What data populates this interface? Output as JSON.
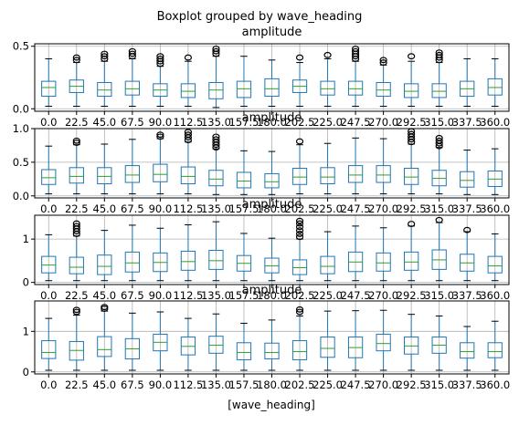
{
  "figure": {
    "suptitle": "Boxplot grouped by wave_heading",
    "xlabel": "[wave_heading]"
  },
  "colors": {
    "box": "#1f77b4",
    "median": "#2ca02c",
    "whisker": "#1f77b4",
    "flier": "#000000",
    "grid": "#b0b0b0",
    "axis": "#000000"
  },
  "chart_data": [
    {
      "type": "boxplot",
      "title": "amplitude",
      "categories": [
        "0.0",
        "22.5",
        "45.0",
        "67.5",
        "90.0",
        "112.5",
        "135.0",
        "157.5",
        "180.0",
        "202.5",
        "225.0",
        "247.5",
        "270.0",
        "292.5",
        "315.0",
        "337.5",
        "360.0"
      ],
      "yticks": [
        "0.0",
        "0.5"
      ],
      "ylim": [
        -0.02,
        0.52
      ],
      "grid": true,
      "boxes": [
        {
          "whislo": 0.02,
          "q1": 0.1,
          "med": 0.17,
          "q3": 0.22,
          "whishi": 0.4,
          "fliers": []
        },
        {
          "whislo": 0.02,
          "q1": 0.13,
          "med": 0.18,
          "q3": 0.23,
          "whishi": 0.37,
          "fliers": [
            0.39,
            0.41
          ]
        },
        {
          "whislo": 0.02,
          "q1": 0.1,
          "med": 0.15,
          "q3": 0.21,
          "whishi": 0.38,
          "fliers": [
            0.4,
            0.42,
            0.44
          ]
        },
        {
          "whislo": 0.02,
          "q1": 0.11,
          "med": 0.16,
          "q3": 0.22,
          "whishi": 0.4,
          "fliers": [
            0.42,
            0.44,
            0.46
          ]
        },
        {
          "whislo": 0.02,
          "q1": 0.1,
          "med": 0.15,
          "q3": 0.2,
          "whishi": 0.34,
          "fliers": [
            0.36,
            0.38,
            0.4,
            0.42
          ]
        },
        {
          "whislo": 0.02,
          "q1": 0.09,
          "med": 0.14,
          "q3": 0.2,
          "whishi": 0.38,
          "fliers": [
            0.41
          ]
        },
        {
          "whislo": 0.01,
          "q1": 0.08,
          "med": 0.15,
          "q3": 0.21,
          "whishi": 0.42,
          "fliers": [
            0.44,
            0.46,
            0.48
          ]
        },
        {
          "whislo": 0.02,
          "q1": 0.09,
          "med": 0.16,
          "q3": 0.22,
          "whishi": 0.42,
          "fliers": []
        },
        {
          "whislo": 0.02,
          "q1": 0.1,
          "med": 0.16,
          "q3": 0.24,
          "whishi": 0.39,
          "fliers": []
        },
        {
          "whislo": 0.02,
          "q1": 0.13,
          "med": 0.18,
          "q3": 0.23,
          "whishi": 0.37,
          "fliers": [
            0.41
          ]
        },
        {
          "whislo": 0.02,
          "q1": 0.11,
          "med": 0.16,
          "q3": 0.22,
          "whishi": 0.4,
          "fliers": [
            0.43
          ]
        },
        {
          "whislo": 0.02,
          "q1": 0.11,
          "med": 0.16,
          "q3": 0.22,
          "whishi": 0.38,
          "fliers": [
            0.4,
            0.42,
            0.44,
            0.46,
            0.48
          ]
        },
        {
          "whislo": 0.02,
          "q1": 0.1,
          "med": 0.15,
          "q3": 0.21,
          "whishi": 0.35,
          "fliers": [
            0.37,
            0.39
          ]
        },
        {
          "whislo": 0.02,
          "q1": 0.09,
          "med": 0.14,
          "q3": 0.2,
          "whishi": 0.38,
          "fliers": [
            0.42
          ]
        },
        {
          "whislo": 0.02,
          "q1": 0.09,
          "med": 0.14,
          "q3": 0.2,
          "whishi": 0.37,
          "fliers": [
            0.39,
            0.41,
            0.43,
            0.45
          ]
        },
        {
          "whislo": 0.02,
          "q1": 0.1,
          "med": 0.16,
          "q3": 0.22,
          "whishi": 0.4,
          "fliers": []
        },
        {
          "whislo": 0.02,
          "q1": 0.11,
          "med": 0.17,
          "q3": 0.24,
          "whishi": 0.4,
          "fliers": []
        }
      ]
    },
    {
      "type": "boxplot",
      "title": "amplitude",
      "categories": [
        "0.0",
        "22.5",
        "45.0",
        "67.5",
        "90.0",
        "112.5",
        "135.0",
        "157.5",
        "180.0",
        "202.5",
        "225.0",
        "247.5",
        "270.0",
        "292.5",
        "315.0",
        "337.5",
        "360.0"
      ],
      "yticks": [
        "0.0",
        "0.5",
        "1.0"
      ],
      "ylim": [
        -0.03,
        1.0
      ],
      "grid": true,
      "boxes": [
        {
          "whislo": 0.03,
          "q1": 0.17,
          "med": 0.27,
          "q3": 0.39,
          "whishi": 0.74,
          "fliers": []
        },
        {
          "whislo": 0.03,
          "q1": 0.19,
          "med": 0.29,
          "q3": 0.42,
          "whishi": 0.76,
          "fliers": [
            0.79,
            0.82
          ]
        },
        {
          "whislo": 0.03,
          "q1": 0.18,
          "med": 0.29,
          "q3": 0.42,
          "whishi": 0.77,
          "fliers": []
        },
        {
          "whislo": 0.03,
          "q1": 0.2,
          "med": 0.31,
          "q3": 0.45,
          "whishi": 0.84,
          "fliers": []
        },
        {
          "whislo": 0.03,
          "q1": 0.21,
          "med": 0.32,
          "q3": 0.47,
          "whishi": 0.85,
          "fliers": [
            0.88,
            0.91
          ]
        },
        {
          "whislo": 0.03,
          "q1": 0.18,
          "med": 0.29,
          "q3": 0.43,
          "whishi": 0.8,
          "fliers": [
            0.83,
            0.87,
            0.91,
            0.95
          ]
        },
        {
          "whislo": 0.02,
          "q1": 0.15,
          "med": 0.25,
          "q3": 0.38,
          "whishi": 0.7,
          "fliers": [
            0.72,
            0.76,
            0.8,
            0.84,
            0.88
          ]
        },
        {
          "whislo": 0.02,
          "q1": 0.12,
          "med": 0.22,
          "q3": 0.35,
          "whishi": 0.67,
          "fliers": []
        },
        {
          "whislo": 0.02,
          "q1": 0.12,
          "med": 0.21,
          "q3": 0.33,
          "whishi": 0.66,
          "fliers": []
        },
        {
          "whislo": 0.03,
          "q1": 0.17,
          "med": 0.28,
          "q3": 0.41,
          "whishi": 0.76,
          "fliers": [
            0.81
          ]
        },
        {
          "whislo": 0.03,
          "q1": 0.18,
          "med": 0.28,
          "q3": 0.42,
          "whishi": 0.78,
          "fliers": []
        },
        {
          "whislo": 0.03,
          "q1": 0.2,
          "med": 0.31,
          "q3": 0.45,
          "whishi": 0.86,
          "fliers": []
        },
        {
          "whislo": 0.03,
          "q1": 0.2,
          "med": 0.31,
          "q3": 0.45,
          "whishi": 0.85,
          "fliers": []
        },
        {
          "whislo": 0.03,
          "q1": 0.17,
          "med": 0.28,
          "q3": 0.41,
          "whishi": 0.77,
          "fliers": [
            0.8,
            0.84,
            0.88,
            0.92,
            0.96
          ]
        },
        {
          "whislo": 0.03,
          "q1": 0.15,
          "med": 0.26,
          "q3": 0.38,
          "whishi": 0.72,
          "fliers": [
            0.74,
            0.78,
            0.82,
            0.86
          ]
        },
        {
          "whislo": 0.02,
          "q1": 0.13,
          "med": 0.23,
          "q3": 0.36,
          "whishi": 0.68,
          "fliers": []
        },
        {
          "whislo": 0.02,
          "q1": 0.14,
          "med": 0.25,
          "q3": 0.37,
          "whishi": 0.7,
          "fliers": []
        }
      ]
    },
    {
      "type": "boxplot",
      "title": "amplitude",
      "categories": [
        "0.0",
        "22.5",
        "45.0",
        "67.5",
        "90.0",
        "112.5",
        "135.0",
        "157.5",
        "180.0",
        "202.5",
        "225.0",
        "247.5",
        "270.0",
        "292.5",
        "315.0",
        "337.5",
        "360.0"
      ],
      "yticks": [
        "0",
        "1"
      ],
      "ylim": [
        -0.05,
        1.55
      ],
      "grid": true,
      "boxes": [
        {
          "whislo": 0.04,
          "q1": 0.22,
          "med": 0.4,
          "q3": 0.6,
          "whishi": 1.1,
          "fliers": []
        },
        {
          "whislo": 0.04,
          "q1": 0.2,
          "med": 0.35,
          "q3": 0.58,
          "whishi": 1.07,
          "fliers": [
            1.12,
            1.18,
            1.24,
            1.3,
            1.36
          ]
        },
        {
          "whislo": 0.04,
          "q1": 0.18,
          "med": 0.37,
          "q3": 0.63,
          "whishi": 1.2,
          "fliers": []
        },
        {
          "whislo": 0.04,
          "q1": 0.24,
          "med": 0.45,
          "q3": 0.7,
          "whishi": 1.32,
          "fliers": []
        },
        {
          "whislo": 0.04,
          "q1": 0.25,
          "med": 0.46,
          "q3": 0.68,
          "whishi": 1.25,
          "fliers": []
        },
        {
          "whislo": 0.04,
          "q1": 0.28,
          "med": 0.48,
          "q3": 0.72,
          "whishi": 1.33,
          "fliers": []
        },
        {
          "whislo": 0.04,
          "q1": 0.3,
          "med": 0.5,
          "q3": 0.74,
          "whishi": 1.4,
          "fliers": []
        },
        {
          "whislo": 0.04,
          "q1": 0.26,
          "med": 0.44,
          "q3": 0.62,
          "whishi": 1.13,
          "fliers": []
        },
        {
          "whislo": 0.04,
          "q1": 0.22,
          "med": 0.38,
          "q3": 0.56,
          "whishi": 1.02,
          "fliers": []
        },
        {
          "whislo": 0.04,
          "q1": 0.18,
          "med": 0.34,
          "q3": 0.52,
          "whishi": 1.0,
          "fliers": [
            1.05,
            1.12,
            1.2,
            1.28,
            1.36,
            1.42
          ]
        },
        {
          "whislo": 0.04,
          "q1": 0.2,
          "med": 0.37,
          "q3": 0.6,
          "whishi": 1.17,
          "fliers": []
        },
        {
          "whislo": 0.04,
          "q1": 0.25,
          "med": 0.47,
          "q3": 0.7,
          "whishi": 1.3,
          "fliers": []
        },
        {
          "whislo": 0.04,
          "q1": 0.26,
          "med": 0.45,
          "q3": 0.68,
          "whishi": 1.26,
          "fliers": []
        },
        {
          "whislo": 0.04,
          "q1": 0.28,
          "med": 0.47,
          "q3": 0.7,
          "whishi": 1.3,
          "fliers": [
            1.35
          ]
        },
        {
          "whislo": 0.04,
          "q1": 0.3,
          "med": 0.52,
          "q3": 0.75,
          "whishi": 1.38,
          "fliers": [
            1.44
          ]
        },
        {
          "whislo": 0.04,
          "q1": 0.26,
          "med": 0.45,
          "q3": 0.65,
          "whishi": 1.17,
          "fliers": [
            1.21
          ]
        },
        {
          "whislo": 0.04,
          "q1": 0.22,
          "med": 0.38,
          "q3": 0.6,
          "whishi": 1.12,
          "fliers": []
        }
      ]
    },
    {
      "type": "boxplot",
      "title": "amplitude",
      "categories": [
        "0.0",
        "22.5",
        "45.0",
        "67.5",
        "90.0",
        "112.5",
        "135.0",
        "157.5",
        "180.0",
        "202.5",
        "225.0",
        "247.5",
        "270.0",
        "292.5",
        "315.0",
        "337.5",
        "360.0"
      ],
      "yticks": [
        "0",
        "1"
      ],
      "ylim": [
        -0.05,
        1.75
      ],
      "grid": true,
      "boxes": [
        {
          "whislo": 0.04,
          "q1": 0.33,
          "med": 0.48,
          "q3": 0.77,
          "whishi": 1.32,
          "fliers": []
        },
        {
          "whislo": 0.04,
          "q1": 0.29,
          "med": 0.53,
          "q3": 0.75,
          "whishi": 1.4,
          "fliers": [
            1.48,
            1.53
          ]
        },
        {
          "whislo": 0.04,
          "q1": 0.38,
          "med": 0.55,
          "q3": 0.87,
          "whishi": 1.5,
          "fliers": [
            1.56,
            1.6
          ]
        },
        {
          "whislo": 0.04,
          "q1": 0.32,
          "med": 0.57,
          "q3": 0.82,
          "whishi": 1.45,
          "fliers": []
        },
        {
          "whislo": 0.04,
          "q1": 0.52,
          "med": 0.73,
          "q3": 0.93,
          "whishi": 1.48,
          "fliers": []
        },
        {
          "whislo": 0.04,
          "q1": 0.42,
          "med": 0.63,
          "q3": 0.86,
          "whishi": 1.32,
          "fliers": []
        },
        {
          "whislo": 0.04,
          "q1": 0.46,
          "med": 0.66,
          "q3": 0.88,
          "whishi": 1.43,
          "fliers": []
        },
        {
          "whislo": 0.04,
          "q1": 0.3,
          "med": 0.48,
          "q3": 0.72,
          "whishi": 1.2,
          "fliers": []
        },
        {
          "whislo": 0.04,
          "q1": 0.32,
          "med": 0.48,
          "q3": 0.71,
          "whishi": 1.28,
          "fliers": []
        },
        {
          "whislo": 0.04,
          "q1": 0.3,
          "med": 0.5,
          "q3": 0.77,
          "whishi": 1.38,
          "fliers": [
            1.48,
            1.54
          ]
        },
        {
          "whislo": 0.04,
          "q1": 0.36,
          "med": 0.58,
          "q3": 0.86,
          "whishi": 1.5,
          "fliers": []
        },
        {
          "whislo": 0.04,
          "q1": 0.35,
          "med": 0.6,
          "q3": 0.86,
          "whishi": 1.51,
          "fliers": []
        },
        {
          "whislo": 0.04,
          "q1": 0.52,
          "med": 0.7,
          "q3": 0.93,
          "whishi": 1.52,
          "fliers": []
        },
        {
          "whislo": 0.04,
          "q1": 0.44,
          "med": 0.64,
          "q3": 0.86,
          "whishi": 1.42,
          "fliers": []
        },
        {
          "whislo": 0.04,
          "q1": 0.46,
          "med": 0.66,
          "q3": 0.86,
          "whishi": 1.38,
          "fliers": []
        },
        {
          "whislo": 0.04,
          "q1": 0.34,
          "med": 0.5,
          "q3": 0.72,
          "whishi": 1.12,
          "fliers": []
        },
        {
          "whislo": 0.04,
          "q1": 0.35,
          "med": 0.5,
          "q3": 0.72,
          "whishi": 1.25,
          "fliers": []
        }
      ]
    }
  ]
}
